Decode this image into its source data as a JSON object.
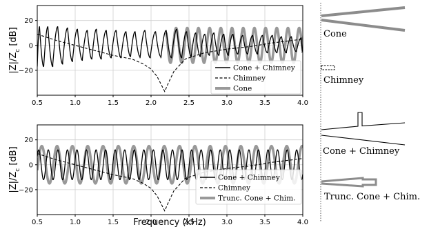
{
  "figure": {
    "xlabel": "Frequency (kHz)",
    "ylabel_main": "|Z|/Z",
    "ylabel_sub": "c",
    "ylabel_unit": " [dB]",
    "geometry_labels": [
      "Cone",
      "Chimney",
      "Cone + Chimney",
      "Trunc. Cone + Chim."
    ]
  },
  "chart_data": [
    {
      "type": "line",
      "xlim": [
        0.5,
        4.0
      ],
      "ylim": [
        -40,
        32
      ],
      "xticks": [
        0.5,
        1.0,
        1.5,
        2.0,
        2.5,
        3.0,
        3.5,
        4.0
      ],
      "xtick_labels": [
        "0.5",
        "1.0",
        "1.5",
        "2.0",
        "2.5",
        "3.0",
        "3.5",
        "4.0"
      ],
      "yticks": [
        20,
        0,
        -20
      ],
      "ytick_labels": [
        "20",
        "0",
        "−20"
      ],
      "grid": true,
      "legend": "lower-right",
      "series": [
        {
          "name": "Cone + Chimney",
          "style": "solid",
          "color": "#000000",
          "peaks_x": [
            0.53,
            0.64,
            0.77,
            0.9,
            1.03,
            1.16,
            1.28,
            1.41,
            1.54,
            1.67,
            1.79,
            1.92,
            2.06,
            2.2,
            2.34,
            2.47,
            2.59,
            2.71,
            2.83,
            2.96,
            3.08,
            3.21,
            3.34,
            3.47,
            3.6,
            3.72,
            3.85,
            3.98
          ],
          "peak_values": [
            15,
            15,
            15,
            14,
            13,
            12,
            13,
            12,
            12,
            11,
            11,
            12,
            11,
            12,
            13,
            11,
            10,
            9,
            10,
            9,
            9,
            8,
            8,
            8,
            8,
            7,
            7,
            6
          ],
          "trough_values": [
            -17,
            -17,
            -15,
            -13,
            -12,
            -11,
            -11,
            -10,
            -10,
            -9,
            -9,
            -10,
            -9,
            -10,
            -10,
            -9,
            -9,
            -8,
            -8,
            -8,
            -7,
            -7,
            -7,
            -6,
            -6,
            -6,
            -5,
            -5
          ]
        },
        {
          "name": "Chimney",
          "style": "dashed",
          "color": "#000000",
          "x": [
            0.5,
            0.75,
            1.0,
            1.25,
            1.5,
            1.75,
            1.9,
            2.0,
            2.08,
            2.13,
            2.18,
            2.23,
            2.3,
            2.45,
            2.7,
            3.0,
            3.3,
            3.6,
            4.0
          ],
          "y": [
            9,
            4,
            0,
            -4,
            -8,
            -11,
            -15,
            -19,
            -25,
            -31,
            -37,
            -30,
            -21,
            -11,
            -6,
            -3,
            -1,
            2,
            5
          ]
        },
        {
          "name": "Cone",
          "style": "solid-thick",
          "color": "#999999",
          "period": 0.1475,
          "phase": 0.56,
          "amplitude": 14,
          "x_range": [
            2.2,
            4.0
          ]
        }
      ]
    },
    {
      "type": "line",
      "xlim": [
        0.5,
        4.0
      ],
      "ylim": [
        -40,
        32
      ],
      "xticks": [
        0.5,
        1.0,
        1.5,
        2.0,
        2.5,
        3.0,
        3.5,
        4.0
      ],
      "xtick_labels": [
        "0.5",
        "1.0",
        "1.5",
        "2.0",
        "2.5",
        "3.0",
        "3.5",
        "4.0"
      ],
      "yticks": [
        20,
        0,
        -20
      ],
      "ytick_labels": [
        "20",
        "0",
        "−20"
      ],
      "grid": true,
      "legend": "lower-right",
      "series": [
        {
          "name": "Cone + Chimney",
          "style": "solid",
          "color": "#000000",
          "period": 0.1259,
          "phase": 0.52,
          "amplitude": 12
        },
        {
          "name": "Chimney",
          "style": "dashed",
          "color": "#000000",
          "x": [
            0.5,
            0.75,
            1.0,
            1.25,
            1.5,
            1.75,
            1.9,
            2.0,
            2.08,
            2.13,
            2.18,
            2.23,
            2.3,
            2.45,
            2.7,
            3.0,
            3.3,
            3.6,
            4.0
          ],
          "y": [
            9,
            4,
            0,
            -4,
            -8,
            -11,
            -15,
            -19,
            -25,
            -31,
            -37,
            -30,
            -21,
            -11,
            -6,
            -3,
            -1,
            2,
            5
          ]
        },
        {
          "name": "Trunc. Cone + Chim.",
          "style": "solid-thick",
          "color": "#999999",
          "period": 0.2018,
          "phase": 0.56,
          "amplitude": 15
        }
      ]
    }
  ]
}
